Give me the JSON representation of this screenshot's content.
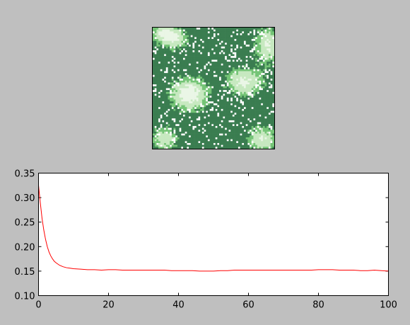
{
  "chart_data": [
    {
      "type": "heatmap",
      "title": "",
      "description_colors": [
        "#ffffff",
        "#c7e9c0",
        "#74c476",
        "#3a7d50"
      ],
      "colormap": "Greens",
      "grid_size": [
        64,
        64
      ],
      "axes_ticks": false
    },
    {
      "type": "line",
      "title": "",
      "xlabel": "",
      "ylabel": "",
      "xlim": [
        0,
        100
      ],
      "ylim": [
        0.1,
        0.35
      ],
      "grid": false,
      "legend": "none",
      "x_ticks": [
        0,
        20,
        40,
        60,
        80,
        100
      ],
      "y_ticks": [
        0.1,
        0.15,
        0.2,
        0.25,
        0.3,
        0.35
      ],
      "x_tick_labels": [
        "0",
        "20",
        "40",
        "60",
        "80",
        "100"
      ],
      "y_tick_labels": [
        "0.10",
        "0.15",
        "0.20",
        "0.25",
        "0.30",
        "0.35"
      ],
      "series": [
        {
          "color": "#ff0000",
          "x": [
            0,
            0.5,
            1,
            1.5,
            2,
            2.5,
            3,
            3.5,
            4,
            4.5,
            5,
            6,
            7,
            8,
            9,
            10,
            12,
            14,
            16,
            18,
            20,
            22,
            24,
            26,
            28,
            30,
            32,
            34,
            36,
            38,
            40,
            42,
            44,
            46,
            48,
            50,
            52,
            54,
            56,
            58,
            60,
            62,
            64,
            66,
            68,
            70,
            72,
            74,
            76,
            78,
            80,
            82,
            84,
            86,
            88,
            90,
            92,
            94,
            96,
            98,
            100
          ],
          "y": [
            0.325,
            0.29,
            0.258,
            0.234,
            0.215,
            0.2,
            0.189,
            0.181,
            0.175,
            0.17,
            0.167,
            0.162,
            0.159,
            0.157,
            0.156,
            0.155,
            0.154,
            0.153,
            0.153,
            0.152,
            0.153,
            0.153,
            0.152,
            0.152,
            0.152,
            0.152,
            0.152,
            0.152,
            0.152,
            0.151,
            0.151,
            0.151,
            0.151,
            0.15,
            0.15,
            0.15,
            0.151,
            0.151,
            0.152,
            0.152,
            0.152,
            0.152,
            0.152,
            0.152,
            0.152,
            0.152,
            0.152,
            0.152,
            0.152,
            0.152,
            0.153,
            0.153,
            0.153,
            0.152,
            0.152,
            0.152,
            0.151,
            0.151,
            0.152,
            0.151,
            0.15
          ]
        }
      ]
    }
  ]
}
